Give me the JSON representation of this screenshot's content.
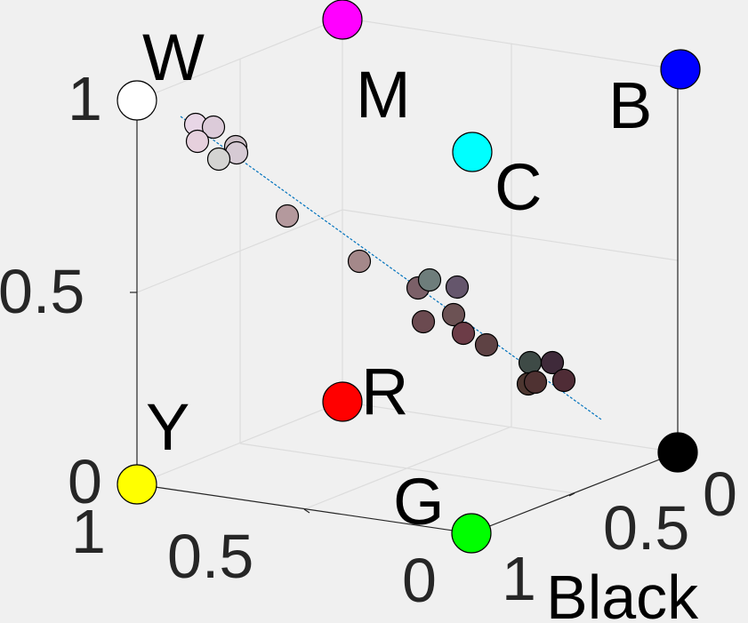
{
  "chart_data": {
    "type": "scatter3d",
    "axis_label": "Black",
    "vertical_ticks": [
      "0",
      "0.5",
      "1"
    ],
    "left_ticks": [
      "1",
      "0.5",
      "0"
    ],
    "right_ticks": [
      "1",
      "0.5",
      "0"
    ],
    "grid": true,
    "vertices": [
      {
        "label": "W",
        "color": "#ffffff"
      },
      {
        "label": "M",
        "color": "#ff00ff"
      },
      {
        "label": "B",
        "color": "#0000ff"
      },
      {
        "label": "C",
        "color": "#00ffff"
      },
      {
        "label": "R",
        "color": "#ff0000"
      },
      {
        "label": "Y",
        "color": "#ffff00"
      },
      {
        "label": "G",
        "color": "#00ff00"
      },
      {
        "label": "",
        "color": "#000000"
      }
    ],
    "points": [
      {
        "color": "#e8d6e6"
      },
      {
        "color": "#dccbd9"
      },
      {
        "color": "#e6d0dd"
      },
      {
        "color": "#cdc0c8"
      },
      {
        "color": "#d6cad4"
      },
      {
        "color": "#d4d4d2"
      },
      {
        "color": "#b4999d"
      },
      {
        "color": "#a4888a"
      },
      {
        "color": "#7b6068"
      },
      {
        "color": "#6e7d7b"
      },
      {
        "color": "#65566c"
      },
      {
        "color": "#6b4a50"
      },
      {
        "color": "#6c5254"
      },
      {
        "color": "#6c3c47"
      },
      {
        "color": "#5e4244"
      },
      {
        "color": "#3e4a46"
      },
      {
        "color": "#3f2a3a"
      },
      {
        "color": "#4d3630"
      },
      {
        "color": "#4f3232"
      },
      {
        "color": "#4f2c36"
      }
    ]
  }
}
